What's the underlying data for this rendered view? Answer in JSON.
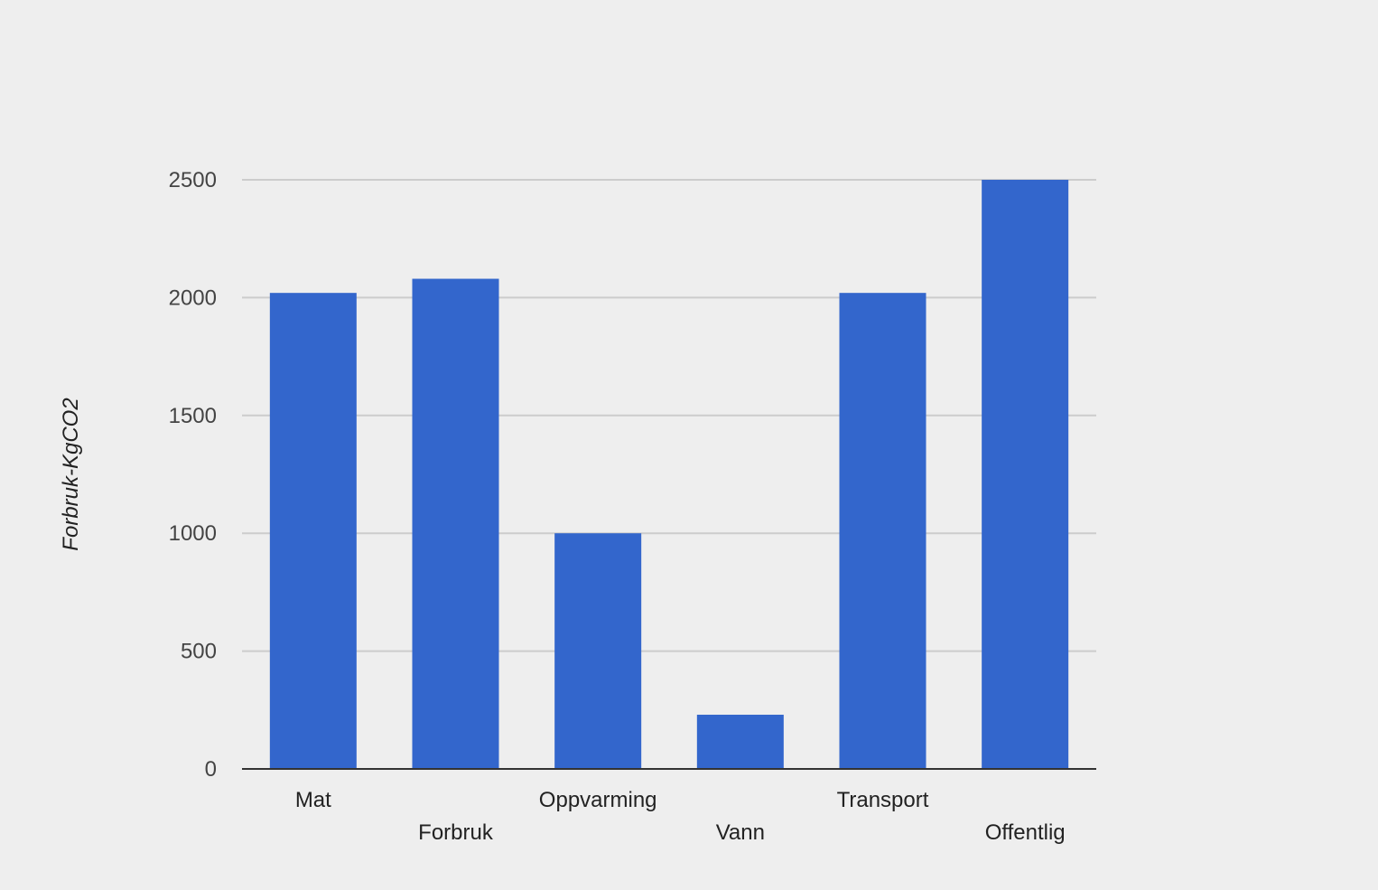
{
  "chart_data": {
    "type": "bar",
    "title": "",
    "xlabel": "",
    "ylabel": "Forbruk-KgCO2",
    "categories": [
      "Mat",
      "Forbruk",
      "Oppvarming",
      "Vann",
      "Transport",
      "Offentlig"
    ],
    "values": [
      2020,
      2080,
      1000,
      230,
      2020,
      2500
    ],
    "yticks": [
      0,
      500,
      1000,
      1500,
      2000,
      2500
    ],
    "ylim": [
      0,
      2500
    ],
    "grid": true,
    "legend": "none",
    "colors": {
      "bar": "#3366cc",
      "grid": "#cccccc",
      "baseline": "#333333"
    }
  }
}
